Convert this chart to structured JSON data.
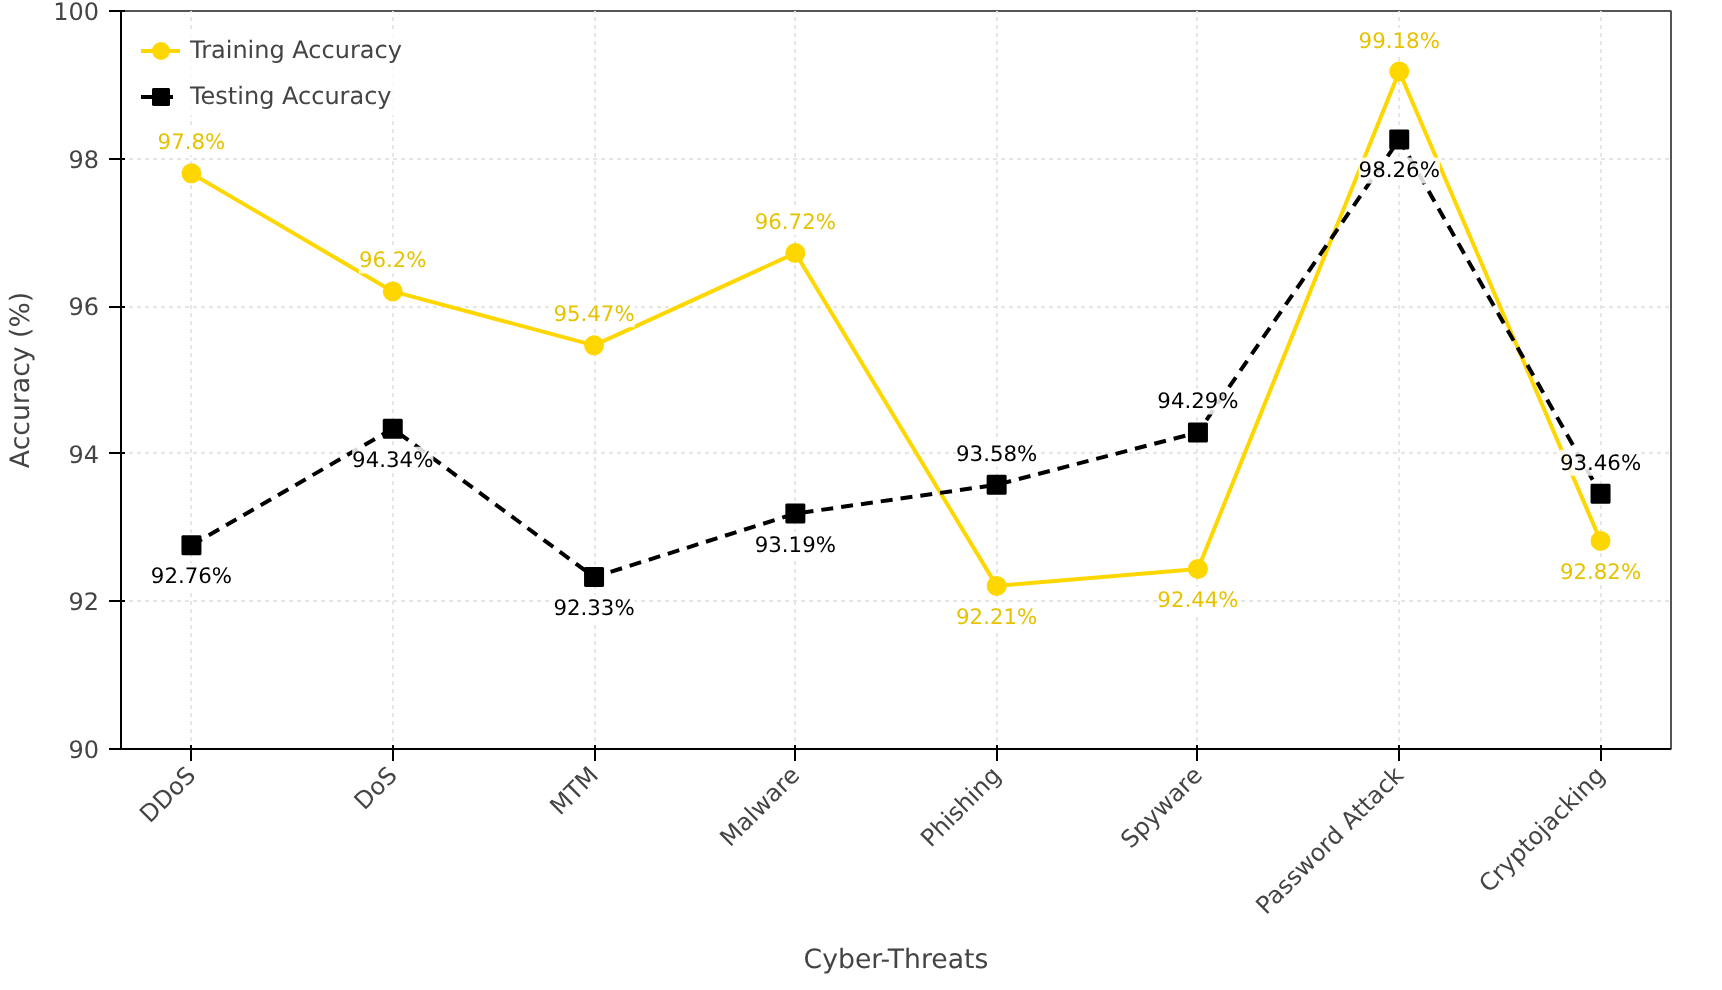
{
  "chart_data": {
    "type": "line",
    "xlabel": "Cyber-Threats",
    "ylabel": "Accuracy (%)",
    "categories": [
      "DDoS",
      "DoS",
      "MTM",
      "Malware",
      "Phishing",
      "Spyware",
      "Password Attack",
      "Cryptojacking"
    ],
    "ylim": [
      90,
      100
    ],
    "yticks": [
      90,
      92,
      94,
      96,
      98,
      100
    ],
    "grid": true,
    "legend": "top left",
    "series": [
      {
        "name": "Training Accuracy",
        "color": "#ffd700",
        "marker": "circle",
        "line_style": "solid",
        "values": [
          97.8,
          96.2,
          95.47,
          96.72,
          92.21,
          92.44,
          99.18,
          92.82
        ],
        "value_labels": [
          "97.8%",
          "96.2%",
          "95.47%",
          "96.72%",
          "92.21%",
          "92.44%",
          "99.18%",
          "92.82%"
        ]
      },
      {
        "name": "Testing Accuracy",
        "color": "#000000",
        "marker": "square",
        "line_style": "dashed",
        "values": [
          92.76,
          94.34,
          92.33,
          93.19,
          93.58,
          94.29,
          98.26,
          93.46
        ],
        "value_labels": [
          "92.76%",
          "94.34%",
          "92.33%",
          "93.19%",
          "93.58%",
          "94.29%",
          "98.26%",
          "93.46%"
        ]
      }
    ]
  }
}
